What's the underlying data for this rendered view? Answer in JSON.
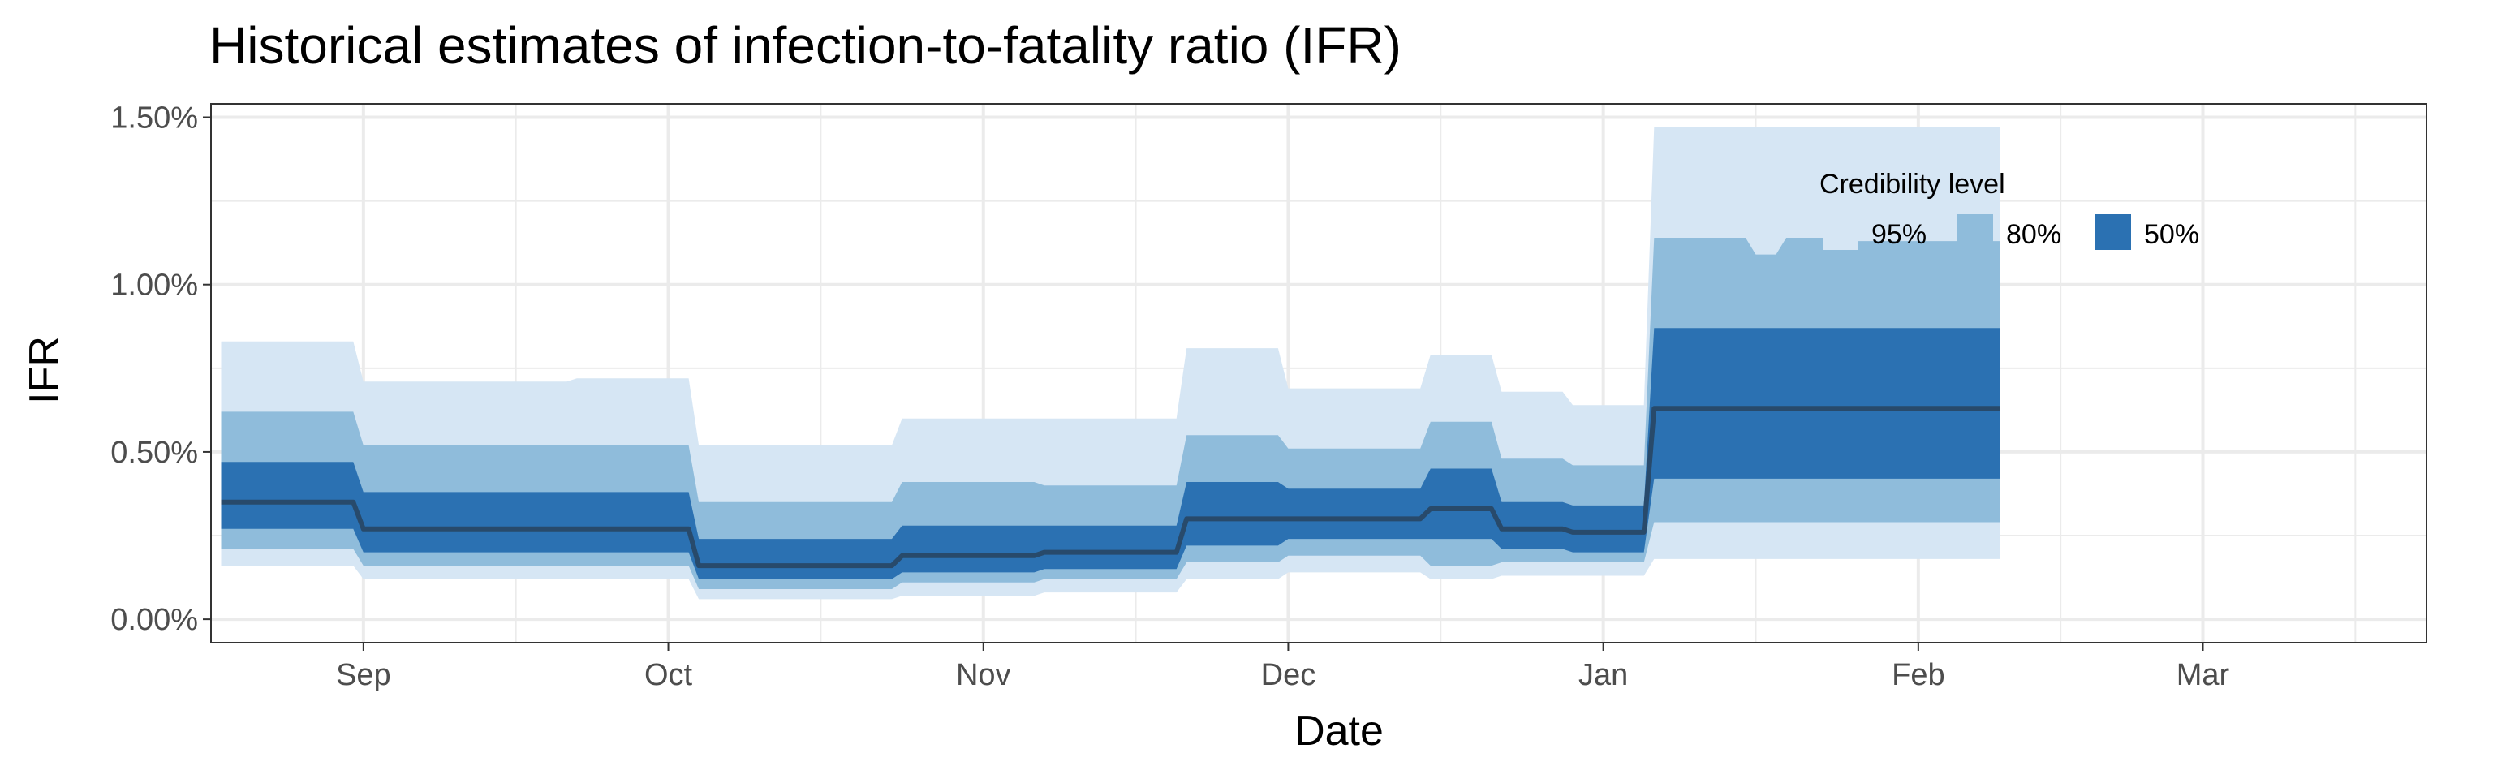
{
  "chart_data": {
    "type": "area",
    "title": "Historical estimates of infection-to-fatality ratio (IFR)",
    "xlabel": "Date",
    "ylabel": "IFR",
    "xlim": [
      "2020-08-17",
      "2021-03-23"
    ],
    "ylim": [
      -0.0007,
      0.0154
    ],
    "x_ticks": [
      "2020-09-01",
      "2020-10-01",
      "2020-11-01",
      "2020-12-01",
      "2021-01-01",
      "2021-02-01",
      "2021-03-01"
    ],
    "x_tick_labels": [
      "Sep",
      "Oct",
      "Nov",
      "Dec",
      "Jan",
      "Feb",
      "Mar"
    ],
    "x_minor_ticks": [
      "2020-08-17",
      "2020-09-16",
      "2020-10-16",
      "2020-11-16",
      "2020-12-16",
      "2021-01-16",
      "2021-02-15",
      "2021-03-16"
    ],
    "y_ticks": [
      0,
      0.005,
      0.01,
      0.015
    ],
    "y_tick_labels": [
      "0.00%",
      "0.50%",
      "1.00%",
      "1.50%"
    ],
    "y_minor_ticks": [
      0.0025,
      0.0075,
      0.0125
    ],
    "grid": true,
    "legend": {
      "title": "Credibility level",
      "position": "top-right",
      "entries": [
        {
          "label": "95%",
          "color": "#d6e6f4"
        },
        {
          "label": "80%",
          "color": "#8fbcdb"
        },
        {
          "label": "50%",
          "color": "#2b71b2"
        }
      ]
    },
    "colors": {
      "ci95": "#d6e6f4",
      "ci80": "#8fbcdb",
      "ci50": "#2b71b2",
      "median": "#284a6b",
      "grid": "#ebebeb",
      "panel_border": "#333333",
      "tick_label": "#4d4d4d"
    },
    "series": [
      {
        "name": "95%",
        "x": [
          "2020-08-18",
          "2020-08-31",
          "2020-09-01",
          "2020-09-21",
          "2020-09-22",
          "2020-10-03",
          "2020-10-04",
          "2020-10-23",
          "2020-10-24",
          "2020-11-06",
          "2020-11-07",
          "2020-11-20",
          "2020-11-21",
          "2020-11-30",
          "2020-12-01",
          "2020-12-14",
          "2020-12-15",
          "2020-12-21",
          "2020-12-22",
          "2020-12-28",
          "2020-12-29",
          "2021-01-05",
          "2021-01-06",
          "2021-01-15",
          "2021-01-16",
          "2021-01-18",
          "2021-01-19",
          "2021-01-25",
          "2021-01-26",
          "2021-02-09"
        ],
        "lower": [
          0.0016,
          0.0016,
          0.0012,
          0.0012,
          0.0012,
          0.0012,
          0.0006,
          0.0006,
          0.0007,
          0.0007,
          0.0008,
          0.0008,
          0.0012,
          0.0012,
          0.0014,
          0.0014,
          0.0012,
          0.0012,
          0.0013,
          0.0013,
          0.0013,
          0.0013,
          0.0018,
          0.0018,
          0.0018,
          0.0018,
          0.0018,
          0.0018,
          0.0018,
          0.0018
        ],
        "upper": [
          0.0083,
          0.0083,
          0.0071,
          0.0071,
          0.0072,
          0.0072,
          0.0052,
          0.0052,
          0.006,
          0.006,
          0.006,
          0.006,
          0.0081,
          0.0081,
          0.0069,
          0.0069,
          0.0079,
          0.0079,
          0.0068,
          0.0068,
          0.0064,
          0.0064,
          0.0147,
          0.0147,
          0.0147,
          0.0147,
          0.0147,
          0.0147,
          0.0147,
          0.0147
        ]
      },
      {
        "name": "80%",
        "x": [
          "2020-08-18",
          "2020-08-31",
          "2020-09-01",
          "2020-09-21",
          "2020-09-22",
          "2020-10-03",
          "2020-10-04",
          "2020-10-23",
          "2020-10-24",
          "2020-11-06",
          "2020-11-07",
          "2020-11-20",
          "2020-11-21",
          "2020-11-30",
          "2020-12-01",
          "2020-12-14",
          "2020-12-15",
          "2020-12-21",
          "2020-12-22",
          "2020-12-28",
          "2020-12-29",
          "2021-01-05",
          "2021-01-06",
          "2021-01-15",
          "2021-01-16",
          "2021-01-18",
          "2021-01-19",
          "2021-01-25",
          "2021-01-26",
          "2021-02-09"
        ],
        "lower": [
          0.0021,
          0.0021,
          0.0016,
          0.0016,
          0.0016,
          0.0016,
          0.0009,
          0.0009,
          0.0011,
          0.0011,
          0.0012,
          0.0012,
          0.0017,
          0.0017,
          0.0019,
          0.0019,
          0.0016,
          0.0016,
          0.0017,
          0.0017,
          0.0017,
          0.0017,
          0.0029,
          0.0029,
          0.0029,
          0.0029,
          0.0029,
          0.0029,
          0.0029,
          0.0029
        ],
        "upper": [
          0.0062,
          0.0062,
          0.0052,
          0.0052,
          0.0052,
          0.0052,
          0.0035,
          0.0035,
          0.0041,
          0.0041,
          0.004,
          0.004,
          0.0055,
          0.0055,
          0.0051,
          0.0051,
          0.0059,
          0.0059,
          0.0048,
          0.0048,
          0.0046,
          0.0046,
          0.0114,
          0.0114,
          0.0109,
          0.0109,
          0.0114,
          0.0114,
          0.0113,
          0.0113
        ]
      },
      {
        "name": "50%",
        "x": [
          "2020-08-18",
          "2020-08-31",
          "2020-09-01",
          "2020-09-21",
          "2020-09-22",
          "2020-10-03",
          "2020-10-04",
          "2020-10-23",
          "2020-10-24",
          "2020-11-06",
          "2020-11-07",
          "2020-11-20",
          "2020-11-21",
          "2020-11-30",
          "2020-12-01",
          "2020-12-14",
          "2020-12-15",
          "2020-12-21",
          "2020-12-22",
          "2020-12-28",
          "2020-12-29",
          "2021-01-05",
          "2021-01-06",
          "2021-02-09"
        ],
        "lower": [
          0.0027,
          0.0027,
          0.002,
          0.002,
          0.002,
          0.002,
          0.0012,
          0.0012,
          0.0014,
          0.0014,
          0.0015,
          0.0015,
          0.0022,
          0.0022,
          0.0024,
          0.0024,
          0.0024,
          0.0024,
          0.0021,
          0.0021,
          0.002,
          0.002,
          0.0042,
          0.0042
        ],
        "upper": [
          0.0047,
          0.0047,
          0.0038,
          0.0038,
          0.0038,
          0.0038,
          0.0024,
          0.0024,
          0.0028,
          0.0028,
          0.0028,
          0.0028,
          0.0041,
          0.0041,
          0.0039,
          0.0039,
          0.0045,
          0.0045,
          0.0035,
          0.0035,
          0.0034,
          0.0034,
          0.0087,
          0.0087
        ]
      },
      {
        "name": "median",
        "x": [
          "2020-08-18",
          "2020-08-31",
          "2020-09-01",
          "2020-09-21",
          "2020-09-22",
          "2020-10-03",
          "2020-10-04",
          "2020-10-23",
          "2020-10-24",
          "2020-11-06",
          "2020-11-07",
          "2020-11-20",
          "2020-11-21",
          "2020-11-30",
          "2020-12-01",
          "2020-12-14",
          "2020-12-15",
          "2020-12-21",
          "2020-12-22",
          "2020-12-28",
          "2020-12-29",
          "2021-01-05",
          "2021-01-06",
          "2021-02-09"
        ],
        "values": [
          0.0035,
          0.0035,
          0.0027,
          0.0027,
          0.0027,
          0.0027,
          0.0016,
          0.0016,
          0.0019,
          0.0019,
          0.002,
          0.002,
          0.003,
          0.003,
          0.003,
          0.003,
          0.0033,
          0.0033,
          0.0027,
          0.0027,
          0.0026,
          0.0026,
          0.0063,
          0.0063
        ]
      }
    ]
  }
}
